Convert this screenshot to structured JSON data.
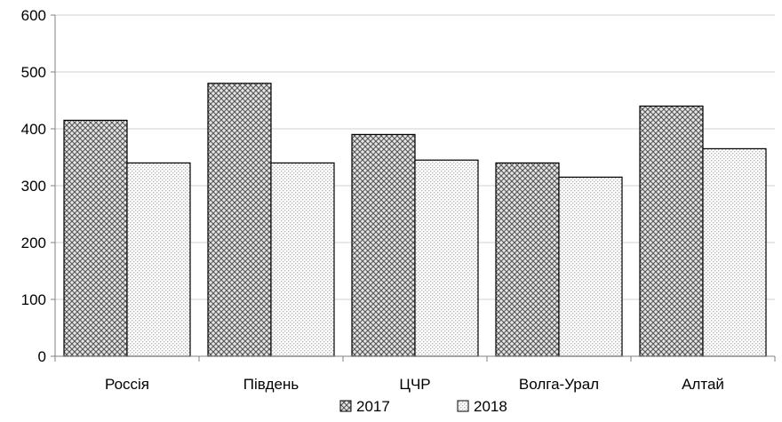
{
  "chart_data": {
    "type": "bar",
    "categories": [
      "Россія",
      "Південь",
      "ЦЧР",
      "Волга-Урал",
      "Алтай"
    ],
    "series": [
      {
        "name": "2017",
        "values": [
          415,
          480,
          390,
          340,
          440
        ],
        "pattern": "dense-crosshatch"
      },
      {
        "name": "2018",
        "values": [
          340,
          340,
          345,
          315,
          365
        ],
        "pattern": "light-dots"
      }
    ],
    "ylim": [
      0,
      600
    ],
    "yticks": [
      0,
      100,
      200,
      300,
      400,
      500,
      600
    ],
    "grid": true,
    "legend_position": "bottom",
    "colors": {
      "bar_stroke": "#000000",
      "grid": "#d0d0d0",
      "axis": "#808080",
      "pattern_dark": "#555555",
      "pattern_light": "#bdbdbd"
    }
  }
}
